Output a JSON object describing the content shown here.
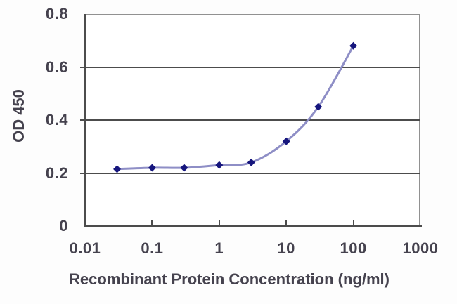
{
  "chart_data": {
    "type": "line",
    "title": "",
    "xlabel": "Recombinant Protein Concentration (ng/ml)",
    "ylabel": "OD 450",
    "x_scale": "log",
    "xlim": [
      0.01,
      1000
    ],
    "ylim": [
      0,
      0.8
    ],
    "x_tick_values": [
      0.01,
      0.1,
      1,
      10,
      100,
      1000
    ],
    "x_tick_labels": [
      "0.01",
      "0.1",
      "1",
      "10",
      "100",
      "1000"
    ],
    "y_tick_values": [
      0,
      0.2,
      0.4,
      0.6,
      0.8
    ],
    "y_tick_labels": [
      "0",
      "0.2",
      "0.4",
      "0.6",
      "0.8"
    ],
    "grid": "horizontal",
    "legend": "none",
    "marker": "diamond",
    "smooth": true,
    "series": [
      {
        "x": [
          0.03,
          0.1,
          0.3,
          1,
          3,
          10,
          30,
          100
        ],
        "y": [
          0.215,
          0.22,
          0.22,
          0.23,
          0.24,
          0.32,
          0.45,
          0.68
        ]
      }
    ],
    "colors": {
      "line": "#8e8ec6",
      "marker": "#16167d",
      "grid": "#4c4c4c",
      "axis": "#4c4c4c",
      "plot_border": "#919191",
      "text": "#45424e",
      "background": "#ffffff"
    }
  }
}
